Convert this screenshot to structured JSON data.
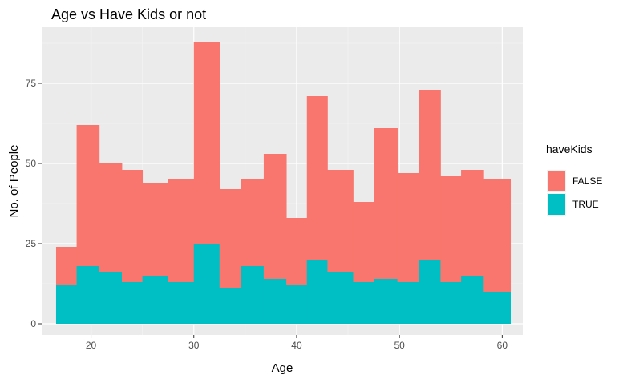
{
  "chart_data": {
    "type": "bar",
    "title": "Age vs Have Kids or not",
    "xlabel": "Age",
    "ylabel": "No. of People",
    "xlim": [
      15.2,
      62.0
    ],
    "ylim": [
      -3.5,
      92.5
    ],
    "grid": true,
    "legend_position": "right",
    "x_ticks": [
      20,
      30,
      40,
      50,
      60
    ],
    "y_ticks": [
      0,
      25,
      50,
      75
    ],
    "bins": [
      [
        16.6,
        18.6
      ],
      [
        18.6,
        20.8
      ],
      [
        20.8,
        23.0
      ],
      [
        23.0,
        25.0
      ],
      [
        25.0,
        27.5
      ],
      [
        27.5,
        30.0
      ],
      [
        30.0,
        32.5
      ],
      [
        32.5,
        34.6
      ],
      [
        34.6,
        36.8
      ],
      [
        36.8,
        39.0
      ],
      [
        39.0,
        41.0
      ],
      [
        41.0,
        43.0
      ],
      [
        43.0,
        45.5
      ],
      [
        45.5,
        47.5
      ],
      [
        47.5,
        49.8
      ],
      [
        49.8,
        51.9
      ],
      [
        51.9,
        54.0
      ],
      [
        54.0,
        56.0
      ],
      [
        56.0,
        58.2
      ],
      [
        58.2,
        60.8
      ]
    ],
    "series": [
      {
        "name": "TRUE",
        "color": "#00BFC4",
        "values": [
          12,
          18,
          16,
          13,
          15,
          13,
          25,
          11,
          18,
          14,
          12,
          20,
          16,
          13,
          14,
          13,
          20,
          13,
          15,
          10
        ]
      },
      {
        "name": "FALSE",
        "color": "#F8766D",
        "values": [
          12,
          44,
          34,
          35,
          29,
          32,
          63,
          31,
          27,
          39,
          21,
          51,
          32,
          25,
          47,
          34,
          53,
          33,
          33,
          35
        ]
      }
    ],
    "legend": {
      "title": "haveKids",
      "entries": [
        {
          "label": "FALSE",
          "color": "#F8766D"
        },
        {
          "label": "TRUE",
          "color": "#00BFC4"
        }
      ]
    }
  }
}
